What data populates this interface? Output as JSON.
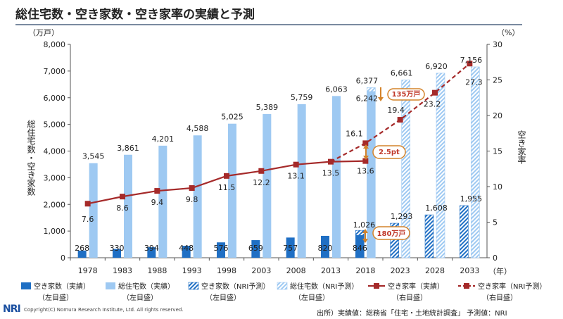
{
  "title": "総住宅数・空き家数・空き家率の実績と予測",
  "left_unit": "（万戸）",
  "right_unit": "（%）",
  "year_unit": "（年）",
  "left_axis_label": "総住宅数・空き家数",
  "right_axis_label": "空き家率",
  "footer": {
    "logo": "NRI",
    "copyright": "Copyright(C) Nomura Research Institute, Ltd. All rights reserved.",
    "source": "出所）実績値：総務省「住宅・土地統計調査」 予測値：NRI"
  },
  "colors": {
    "vacant_actual": "#1f6fc4",
    "total_actual": "#9ec9f2",
    "vacant_forecast": "#1f6fc4",
    "total_forecast": "#9ec9f2",
    "rate_line": "#a52a2a",
    "annotation": "#d4832a"
  },
  "annotations": [
    {
      "text": "135万戸"
    },
    {
      "text": "2.5pt"
    },
    {
      "text": "180万戸"
    }
  ],
  "chart_data": {
    "type": "bar",
    "title": "総住宅数・空き家数・空き家率の実績と予測",
    "categories": [
      "1978",
      "1983",
      "1988",
      "1993",
      "1998",
      "2003",
      "2008",
      "2013",
      "2018",
      "2023",
      "2028",
      "2033"
    ],
    "left_axis": {
      "min": 0,
      "max": 8000,
      "ticks": [
        "0",
        "1,000",
        "2,000",
        "3,000",
        "4,000",
        "5,000",
        "6,000",
        "7,000",
        "8,000"
      ]
    },
    "right_axis": {
      "min": 0,
      "max": 30,
      "ticks": [
        "0",
        "5",
        "10",
        "15",
        "20",
        "25",
        "30"
      ]
    },
    "series": [
      {
        "name": "空き家数（実績）",
        "sub": "（左目盛）",
        "kind": "bar-vacant",
        "values": [
          268,
          330,
          394,
          448,
          576,
          659,
          757,
          820,
          846,
          null,
          null,
          null
        ],
        "labels": [
          "268",
          "330",
          "394",
          "448",
          "576",
          "659",
          "757",
          "820",
          "846",
          "",
          "",
          ""
        ]
      },
      {
        "name": "総住宅数（実績）",
        "sub": "（左目盛）",
        "kind": "bar-total",
        "values": [
          3545,
          3861,
          4201,
          4588,
          5025,
          5389,
          5759,
          6063,
          6242,
          null,
          null,
          null
        ],
        "labels": [
          "3,545",
          "3,861",
          "4,201",
          "4,588",
          "5,025",
          "5,389",
          "5,759",
          "6,063",
          "6,242",
          "",
          "",
          ""
        ]
      },
      {
        "name": "空き家数（NRI予測）",
        "sub": "（左目盛）",
        "kind": "bar-vacant-forecast",
        "values": [
          null,
          null,
          null,
          null,
          null,
          null,
          null,
          null,
          1026,
          1293,
          1608,
          1955
        ],
        "labels": [
          "",
          "",
          "",
          "",
          "",
          "",
          "",
          "",
          "1,026",
          "1,293",
          "1,608",
          "1,955"
        ]
      },
      {
        "name": "総住宅数（NRI予測）",
        "sub": "（左目盛）",
        "kind": "bar-total-forecast",
        "values": [
          null,
          null,
          null,
          null,
          null,
          null,
          null,
          null,
          6377,
          6661,
          6920,
          7156
        ],
        "labels": [
          "",
          "",
          "",
          "",
          "",
          "",
          "",
          "",
          "6,377",
          "6,661",
          "6,920",
          "7,156"
        ]
      },
      {
        "name": "空き家率（実績）",
        "sub": "（右目盛）",
        "kind": "line-actual",
        "values": [
          7.6,
          8.6,
          9.4,
          9.8,
          11.5,
          12.2,
          13.1,
          13.5,
          13.6,
          null,
          null,
          null
        ],
        "labels": [
          "7.6",
          "8.6",
          "9.4",
          "9.8",
          "11.5",
          "12.2",
          "13.1",
          "13.5",
          "13.6",
          "",
          "",
          ""
        ]
      },
      {
        "name": "空き家率（NRI予測）",
        "sub": "（右目盛）",
        "kind": "line-forecast",
        "values": [
          null,
          null,
          null,
          null,
          null,
          null,
          null,
          13.5,
          16.1,
          19.4,
          23.2,
          27.3
        ],
        "labels": [
          "",
          "",
          "",
          "",
          "",
          "",
          "",
          "",
          "16.1",
          "19.4",
          "23.2",
          "27.3"
        ]
      }
    ]
  }
}
